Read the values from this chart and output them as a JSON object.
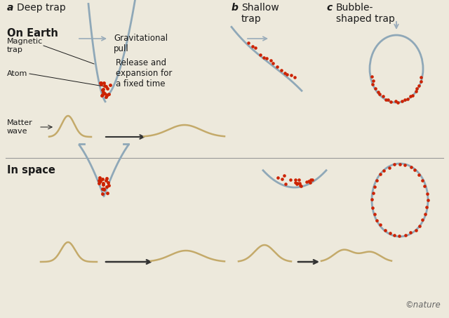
{
  "bg_color": "#ede9dc",
  "title_color": "#1a1a1a",
  "line_color": "#8fa8b8",
  "atom_color": "#cc2200",
  "wave_color": "#c4aa6a",
  "arrow_color": "#333333",
  "gray_arrow_color": "#9aacba",
  "section_line_color": "#999999",
  "label_a": "a",
  "label_b": "b",
  "label_c": "c",
  "title_a": "Deep trap",
  "title_b": "Shallow\ntrap",
  "title_c": "Bubble-\nshaped trap",
  "on_earth": "On Earth",
  "in_space": "In space",
  "grav_pull": "Gravitational\npull",
  "magnetic_trap": "Magnetic\ntrap",
  "atom": "Atom",
  "matter_wave": "Matter\nwave",
  "release_text": "Release and\nexpansion for\na fixed time",
  "nature_text": "©nature"
}
